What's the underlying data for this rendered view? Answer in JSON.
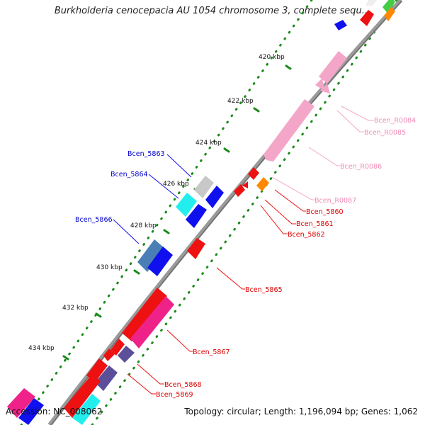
{
  "title": "Burkholderia cenocepacia AU 1054 chromosome 3, complete sequ...",
  "accession": "Accession: NC_008062",
  "summary": "Topology: circular; Length: 1,196,094 bp; Genes: 1,062",
  "ticks": [
    "420 kbp",
    "422 kbp",
    "424 kbp",
    "426 kbp",
    "428 kbp",
    "430 kbp",
    "432 kbp",
    "434 kbp"
  ],
  "gene_labels": {
    "Bcen_R0084": "Bcen_R0084",
    "Bcen_R0085": "Bcen_R0085",
    "Bcen_R0086": "Bcen_R0086",
    "Bcen_R0087": "Bcen_R0087",
    "Bcen_5860": "Bcen_5860",
    "Bcen_5861": "Bcen_5861",
    "Bcen_5862": "Bcen_5862",
    "Bcen_5863": "Bcen_5863",
    "Bcen_5864": "Bcen_5864",
    "Bcen_5865": "Bcen_5865",
    "Bcen_5866": "Bcen_5866",
    "Bcen_5867": "Bcen_5867",
    "Bcen_5868": "Bcen_5868",
    "Bcen_5869": "Bcen_5869"
  },
  "colors": {
    "backbone": "#8a8a8a",
    "tick": "#1a8a1a",
    "red": "#ee1111",
    "pink": "#f4a6c8",
    "magenta": "#ee2288",
    "blue": "#1010ee",
    "cyan": "#22eeee",
    "orange": "#ff8800",
    "gray": "#c8c8c8",
    "steelblue": "#4a7fb5",
    "slate": "#5b4f9a",
    "green": "#44cc44"
  }
}
